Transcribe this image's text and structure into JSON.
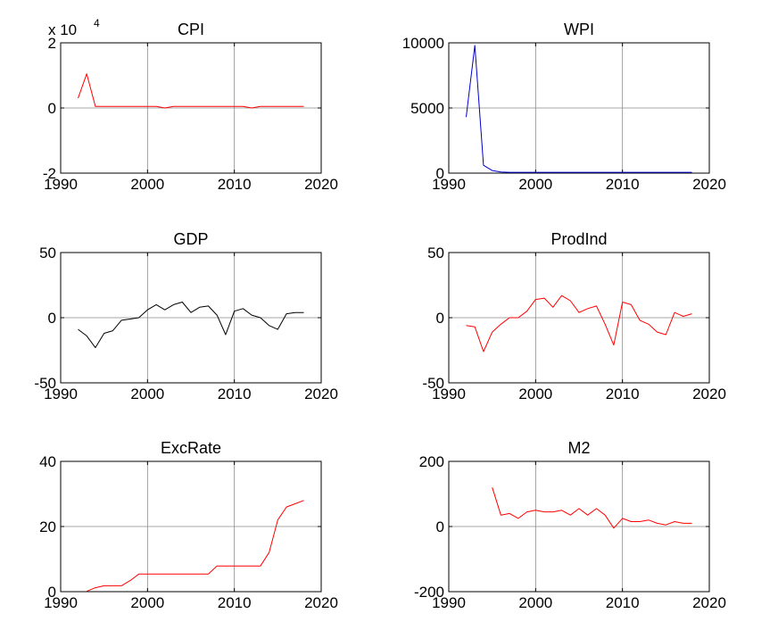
{
  "chart_data": [
    {
      "type": "line",
      "title": "CPI",
      "xlim": [
        1990,
        2020
      ],
      "ylim": [
        -2,
        2
      ],
      "x_ticks": [
        "1990",
        "2000",
        "2010",
        "2020"
      ],
      "y_ticks": [
        "-2",
        "0",
        "2"
      ],
      "y_exponent_label": "x 10",
      "y_exponent_power": "4",
      "grid": "x=2000,2010; y=0",
      "series": [
        {
          "color": "#ff0000",
          "x": [
            1992,
            1993,
            1994,
            1995,
            1996,
            1997,
            1998,
            1999,
            2000,
            2001,
            2002,
            2003,
            2004,
            2005,
            2006,
            2007,
            2008,
            2009,
            2010,
            2011,
            2012,
            2013,
            2014,
            2015,
            2016,
            2017,
            2018
          ],
          "values": [
            0.3,
            1.05,
            0.05,
            0.05,
            0.05,
            0.05,
            0.05,
            0.05,
            0.05,
            0.05,
            0.0,
            0.05,
            0.05,
            0.05,
            0.05,
            0.05,
            0.05,
            0.05,
            0.05,
            0.05,
            0.0,
            0.05,
            0.05,
            0.05,
            0.05,
            0.05,
            0.05
          ]
        }
      ]
    },
    {
      "type": "line",
      "title": "WPI",
      "xlim": [
        1990,
        2020
      ],
      "ylim": [
        0,
        10000
      ],
      "x_ticks": [
        "1990",
        "2000",
        "2010",
        "2020"
      ],
      "y_ticks": [
        "0",
        "5000",
        "10000"
      ],
      "grid": "x=2000,2010; y=5000",
      "series": [
        {
          "color": "#0000cc",
          "x": [
            1992,
            1993,
            1994,
            1995,
            1996,
            1997,
            1998,
            1999,
            2000,
            2001,
            2002,
            2003,
            2004,
            2005,
            2006,
            2007,
            2008,
            2009,
            2010,
            2011,
            2012,
            2013,
            2014,
            2015,
            2016,
            2017,
            2018
          ],
          "values": [
            4300,
            9800,
            600,
            200,
            80,
            60,
            60,
            60,
            60,
            60,
            60,
            60,
            60,
            60,
            60,
            60,
            60,
            60,
            60,
            60,
            60,
            60,
            60,
            60,
            60,
            60,
            60
          ]
        }
      ]
    },
    {
      "type": "line",
      "title": "GDP",
      "xlim": [
        1990,
        2020
      ],
      "ylim": [
        -50,
        50
      ],
      "x_ticks": [
        "1990",
        "2000",
        "2010",
        "2020"
      ],
      "y_ticks": [
        "-50",
        "0",
        "50"
      ],
      "grid": "x=2000,2010; y=0",
      "series": [
        {
          "color": "#000000",
          "x": [
            1992,
            1993,
            1994,
            1995,
            1996,
            1997,
            1998,
            1999,
            2000,
            2001,
            2002,
            2003,
            2004,
            2005,
            2006,
            2007,
            2008,
            2009,
            2010,
            2011,
            2012,
            2013,
            2014,
            2015,
            2016,
            2017,
            2018
          ],
          "values": [
            -9,
            -14,
            -23,
            -12,
            -10,
            -2,
            -1,
            0,
            6,
            10,
            6,
            10,
            12,
            4,
            8,
            9,
            2,
            -13,
            5,
            7,
            2,
            0,
            -6,
            -9,
            3,
            4,
            4
          ]
        }
      ]
    },
    {
      "type": "line",
      "title": "ProdInd",
      "xlim": [
        1990,
        2020
      ],
      "ylim": [
        -50,
        50
      ],
      "x_ticks": [
        "1990",
        "2000",
        "2010",
        "2020"
      ],
      "y_ticks": [
        "-50",
        "0",
        "50"
      ],
      "grid": "x=2000,2010; y=0",
      "series": [
        {
          "color": "#ff0000",
          "x": [
            1992,
            1993,
            1994,
            1995,
            1996,
            1997,
            1998,
            1999,
            2000,
            2001,
            2002,
            2003,
            2004,
            2005,
            2006,
            2007,
            2008,
            2009,
            2010,
            2011,
            2012,
            2013,
            2014,
            2015,
            2016,
            2017,
            2018
          ],
          "values": [
            -6,
            -7,
            -26,
            -11,
            -5,
            0,
            0,
            5,
            14,
            15,
            8,
            17,
            13,
            4,
            7,
            9,
            -5,
            -21,
            12,
            10,
            -2,
            -5,
            -11,
            -13,
            4,
            1,
            3
          ]
        }
      ]
    },
    {
      "type": "line",
      "title": "ExcRate",
      "xlim": [
        1990,
        2020
      ],
      "ylim": [
        0,
        40
      ],
      "x_ticks": [
        "1990",
        "2000",
        "2010",
        "2020"
      ],
      "y_ticks": [
        "0",
        "20",
        "40"
      ],
      "grid": "x=2000,2010; y=20",
      "series": [
        {
          "color": "#ff0000",
          "x": [
            1993,
            1994,
            1995,
            1996,
            1997,
            1998,
            1999,
            2000,
            2001,
            2002,
            2003,
            2004,
            2005,
            2006,
            2007,
            2008,
            2009,
            2010,
            2011,
            2012,
            2013,
            2014,
            2015,
            2016,
            2017,
            2018
          ],
          "values": [
            0.1,
            1.2,
            1.8,
            1.8,
            1.8,
            3.4,
            5.4,
            5.4,
            5.4,
            5.4,
            5.4,
            5.4,
            5.4,
            5.4,
            5.4,
            7.9,
            7.9,
            7.9,
            7.9,
            7.9,
            7.9,
            12,
            22,
            26,
            27,
            28
          ]
        }
      ]
    },
    {
      "type": "line",
      "title": "M2",
      "xlim": [
        1990,
        2020
      ],
      "ylim": [
        -200,
        200
      ],
      "x_ticks": [
        "1990",
        "2000",
        "2010",
        "2020"
      ],
      "y_ticks": [
        "-200",
        "0",
        "200"
      ],
      "grid": "x=2000,2010; y=0",
      "series": [
        {
          "color": "#ff0000",
          "x": [
            1995,
            1996,
            1997,
            1998,
            1999,
            2000,
            2001,
            2002,
            2003,
            2004,
            2005,
            2006,
            2007,
            2008,
            2009,
            2010,
            2011,
            2012,
            2013,
            2014,
            2015,
            2016,
            2017,
            2018
          ],
          "values": [
            120,
            35,
            40,
            25,
            45,
            50,
            45,
            45,
            50,
            35,
            55,
            35,
            55,
            35,
            -5,
            25,
            15,
            15,
            20,
            10,
            5,
            15,
            10,
            10
          ]
        }
      ]
    }
  ]
}
